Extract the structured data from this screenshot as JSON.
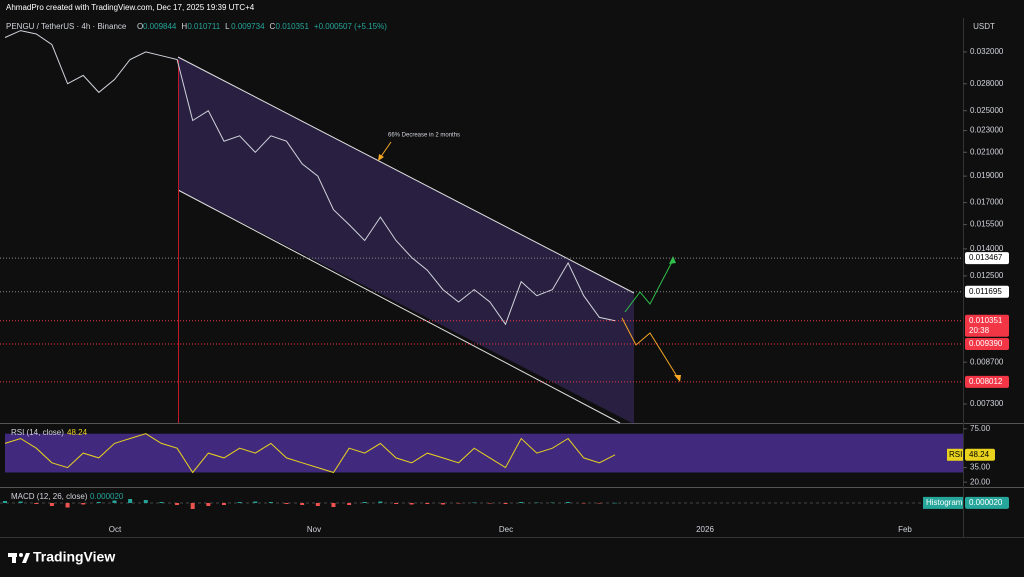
{
  "header": {
    "credit": "AhmadPro created with TradingView.com, Dec 17, 2025 19:39 UTC+4",
    "symbol": "PENGU / TetherUS · 4h · Binance",
    "ohlc": [
      {
        "key": "O",
        "text": "0.009844"
      },
      {
        "key": "H",
        "text": "0.010711"
      },
      {
        "key": "L",
        "text": "0.009734"
      },
      {
        "key": "C",
        "text": "0.010351"
      }
    ],
    "change": "+0.000507 (+5.15%)",
    "currency": "USDT"
  },
  "x_labels": [
    "Oct",
    "Nov",
    "Dec",
    "2026",
    "Feb"
  ],
  "footer": {
    "brand": "TradingView"
  },
  "chart_data": [
    {
      "type": "line",
      "log": true,
      "ylim": [
        0.00674,
        0.0369
      ],
      "yticks": [
        {
          "value": 0.032,
          "label": "0.032000"
        },
        {
          "value": 0.028,
          "label": "0.028000"
        },
        {
          "value": 0.025,
          "label": "0.025000"
        },
        {
          "value": 0.023,
          "label": "0.023000"
        },
        {
          "value": 0.021,
          "label": "0.021000"
        },
        {
          "value": 0.019,
          "label": "0.019000"
        },
        {
          "value": 0.017,
          "label": "0.017000"
        },
        {
          "value": 0.0155,
          "label": "0.015500"
        },
        {
          "value": 0.014,
          "label": "0.014000"
        },
        {
          "value": 0.0125,
          "label": "0.012500"
        },
        {
          "value": 0.0087,
          "label": "0.008700"
        },
        {
          "value": 0.0073,
          "label": "0.007300"
        }
      ],
      "series": [
        {
          "name": "PENGU / TetherUS",
          "color": "#d1d4dc",
          "values": [
            0.034,
            0.035,
            0.0345,
            0.033,
            0.028,
            0.029,
            0.027,
            0.0285,
            0.031,
            0.032,
            0.0315,
            0.031,
            0.024,
            0.025,
            0.022,
            0.0225,
            0.021,
            0.0225,
            0.022,
            0.02,
            0.019,
            0.0165,
            0.0155,
            0.0145,
            0.016,
            0.0145,
            0.0135,
            0.0128,
            0.0118,
            0.0112,
            0.0118,
            0.0112,
            0.0102,
            0.0122,
            0.0115,
            0.0118,
            0.0132,
            0.0115,
            0.0105,
            0.010351
          ]
        }
      ],
      "levels": [
        {
          "value": 0.013467,
          "label": "0.013467",
          "color": "#ffffff"
        },
        {
          "value": 0.011695,
          "label": "0.011695",
          "color": "#ffffff"
        },
        {
          "value": 0.010351,
          "label": "0.010351",
          "color": "#f23645",
          "countdown": "20:38"
        },
        {
          "value": 0.00939,
          "label": "0.009390",
          "color": "#f23645"
        },
        {
          "value": 0.008012,
          "label": "0.008012",
          "color": "#f23645"
        }
      ],
      "annotation": "66% Decrease in 2 months"
    },
    {
      "type": "line",
      "title": "RSI (14, close)",
      "ylim": [
        15,
        80
      ],
      "band": [
        30,
        70
      ],
      "yticks": [
        {
          "value": 75,
          "label": "75.00"
        },
        {
          "value": 35,
          "label": "35.00"
        },
        {
          "value": 20,
          "label": "20.00"
        }
      ],
      "series": [
        {
          "name": "RSI",
          "color": "#e8d21d",
          "values": [
            60,
            65,
            55,
            40,
            35,
            50,
            45,
            60,
            65,
            70,
            60,
            55,
            30,
            50,
            45,
            55,
            50,
            60,
            45,
            40,
            35,
            30,
            55,
            50,
            60,
            45,
            40,
            50,
            45,
            40,
            55,
            45,
            35,
            65,
            50,
            55,
            65,
            45,
            40,
            48.24
          ]
        }
      ]
    },
    {
      "type": "bar",
      "title": "MACD (12, 26, close)",
      "ylim": [
        -0.003,
        0.003
      ],
      "current": 2e-05,
      "current_label": "0.000020",
      "series": [
        {
          "name": "Histogram",
          "color": "#26a69a",
          "values": [
            0.0004,
            0.0003,
            -0.0002,
            -0.0006,
            -0.0009,
            -0.0003,
            0.0002,
            0.0005,
            0.0008,
            0.0006,
            0.0002,
            -0.0004,
            -0.0012,
            -0.0006,
            -0.0004,
            0.0002,
            0.0003,
            0.0002,
            -0.0002,
            -0.0004,
            -0.0006,
            -0.0008,
            -0.0004,
            0.0002,
            0.0003,
            -0.0002,
            -0.0003,
            -0.0002,
            -0.0003,
            -0.0001,
            0.0001,
            -0.0001,
            -0.0002,
            0.0002,
            0.0001,
            0.0001,
            0.0002,
            -0.0001,
            -0.0001,
            2e-05
          ]
        }
      ]
    }
  ]
}
